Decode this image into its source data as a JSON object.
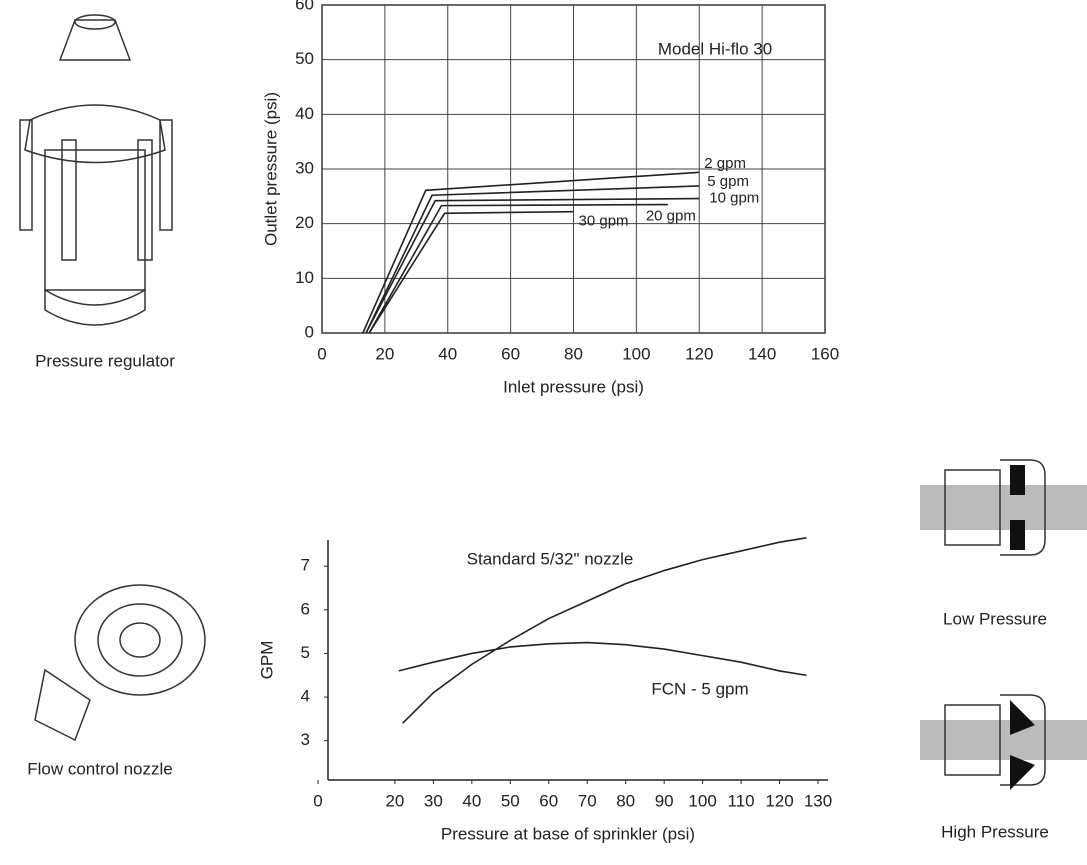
{
  "captions": {
    "regulator": "Pressure regulator",
    "nozzle": "Flow control nozzle",
    "low": "Low Pressure",
    "high": "High Pressure"
  },
  "chart_data": [
    {
      "type": "line",
      "xlabel": "Inlet pressure (psi)",
      "ylabel": "Outlet pressure (psi)",
      "annotation": "Model Hi-flo 30",
      "xlim": [
        0,
        160
      ],
      "xticks": [
        0,
        20,
        40,
        60,
        80,
        100,
        120,
        140,
        160
      ],
      "ylim": [
        0,
        60
      ],
      "yticks": [
        0,
        10,
        20,
        30,
        40,
        50,
        60
      ],
      "grid": true,
      "series": [
        {
          "name": "2 gpm",
          "color": "#222",
          "x": [
            13,
            33,
            120
          ],
          "values": [
            0,
            26.1,
            29.4
          ]
        },
        {
          "name": "5 gpm",
          "color": "#222",
          "x": [
            14,
            35,
            120
          ],
          "values": [
            0,
            25.2,
            26.9
          ]
        },
        {
          "name": "10 gpm",
          "color": "#222",
          "x": [
            14,
            36,
            120
          ],
          "values": [
            0,
            24.2,
            24.6
          ]
        },
        {
          "name": "20 gpm",
          "color": "#222",
          "x": [
            15,
            38,
            110
          ],
          "values": [
            0,
            23.3,
            23.5
          ]
        },
        {
          "name": "30 gpm",
          "color": "#222",
          "x": [
            15,
            39,
            80
          ],
          "values": [
            0,
            21.9,
            22.2
          ]
        }
      ]
    },
    {
      "type": "line",
      "xlabel": "Pressure at base of sprinkler (psi)",
      "ylabel": "GPM",
      "xlim": [
        0,
        130
      ],
      "xticks": [
        0,
        20,
        30,
        40,
        50,
        60,
        70,
        80,
        90,
        100,
        110,
        120,
        130
      ],
      "ylim": [
        2.1,
        7.6
      ],
      "yticks": [
        3,
        4,
        5,
        6,
        7
      ],
      "grid": false,
      "annotations": [
        "Standard 5/32\" nozzle",
        "FCN - 5 gpm"
      ],
      "series": [
        {
          "name": "Standard 5/32\" nozzle",
          "color": "#222",
          "x": [
            22,
            30,
            40,
            50,
            60,
            70,
            80,
            90,
            100,
            110,
            120,
            127
          ],
          "values": [
            3.4,
            4.1,
            4.75,
            5.3,
            5.8,
            6.2,
            6.6,
            6.9,
            7.15,
            7.35,
            7.55,
            7.65
          ]
        },
        {
          "name": "FCN - 5 gpm",
          "color": "#222",
          "x": [
            21,
            30,
            40,
            50,
            60,
            70,
            80,
            90,
            100,
            110,
            120,
            127
          ],
          "values": [
            4.6,
            4.8,
            5.0,
            5.15,
            5.22,
            5.25,
            5.2,
            5.1,
            4.95,
            4.8,
            4.6,
            4.5
          ]
        }
      ]
    }
  ]
}
